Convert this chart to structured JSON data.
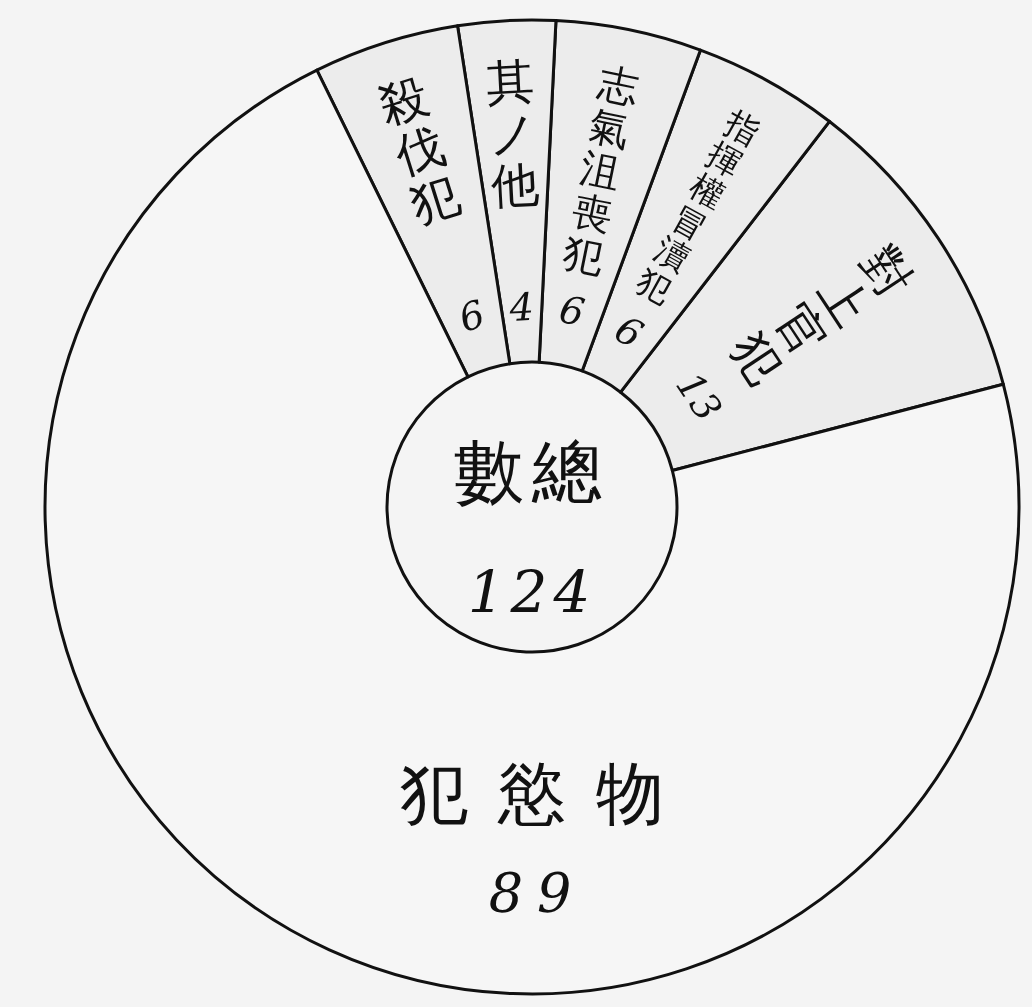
{
  "chart_data": {
    "type": "donut",
    "categories": [
      "對上官犯",
      "指揮權冒瀆犯",
      "志氣沮喪犯",
      "其ノ他",
      "殺伐犯",
      "犯慾物"
    ],
    "values": [
      13,
      6,
      6,
      4,
      6,
      89
    ],
    "colors": [
      "#ececec",
      "#ececec",
      "#ececec",
      "#ececec",
      "#ececec",
      "#f6f6f6"
    ],
    "data_labels": true,
    "annotations": [
      "數總",
      "124"
    ]
  }
}
